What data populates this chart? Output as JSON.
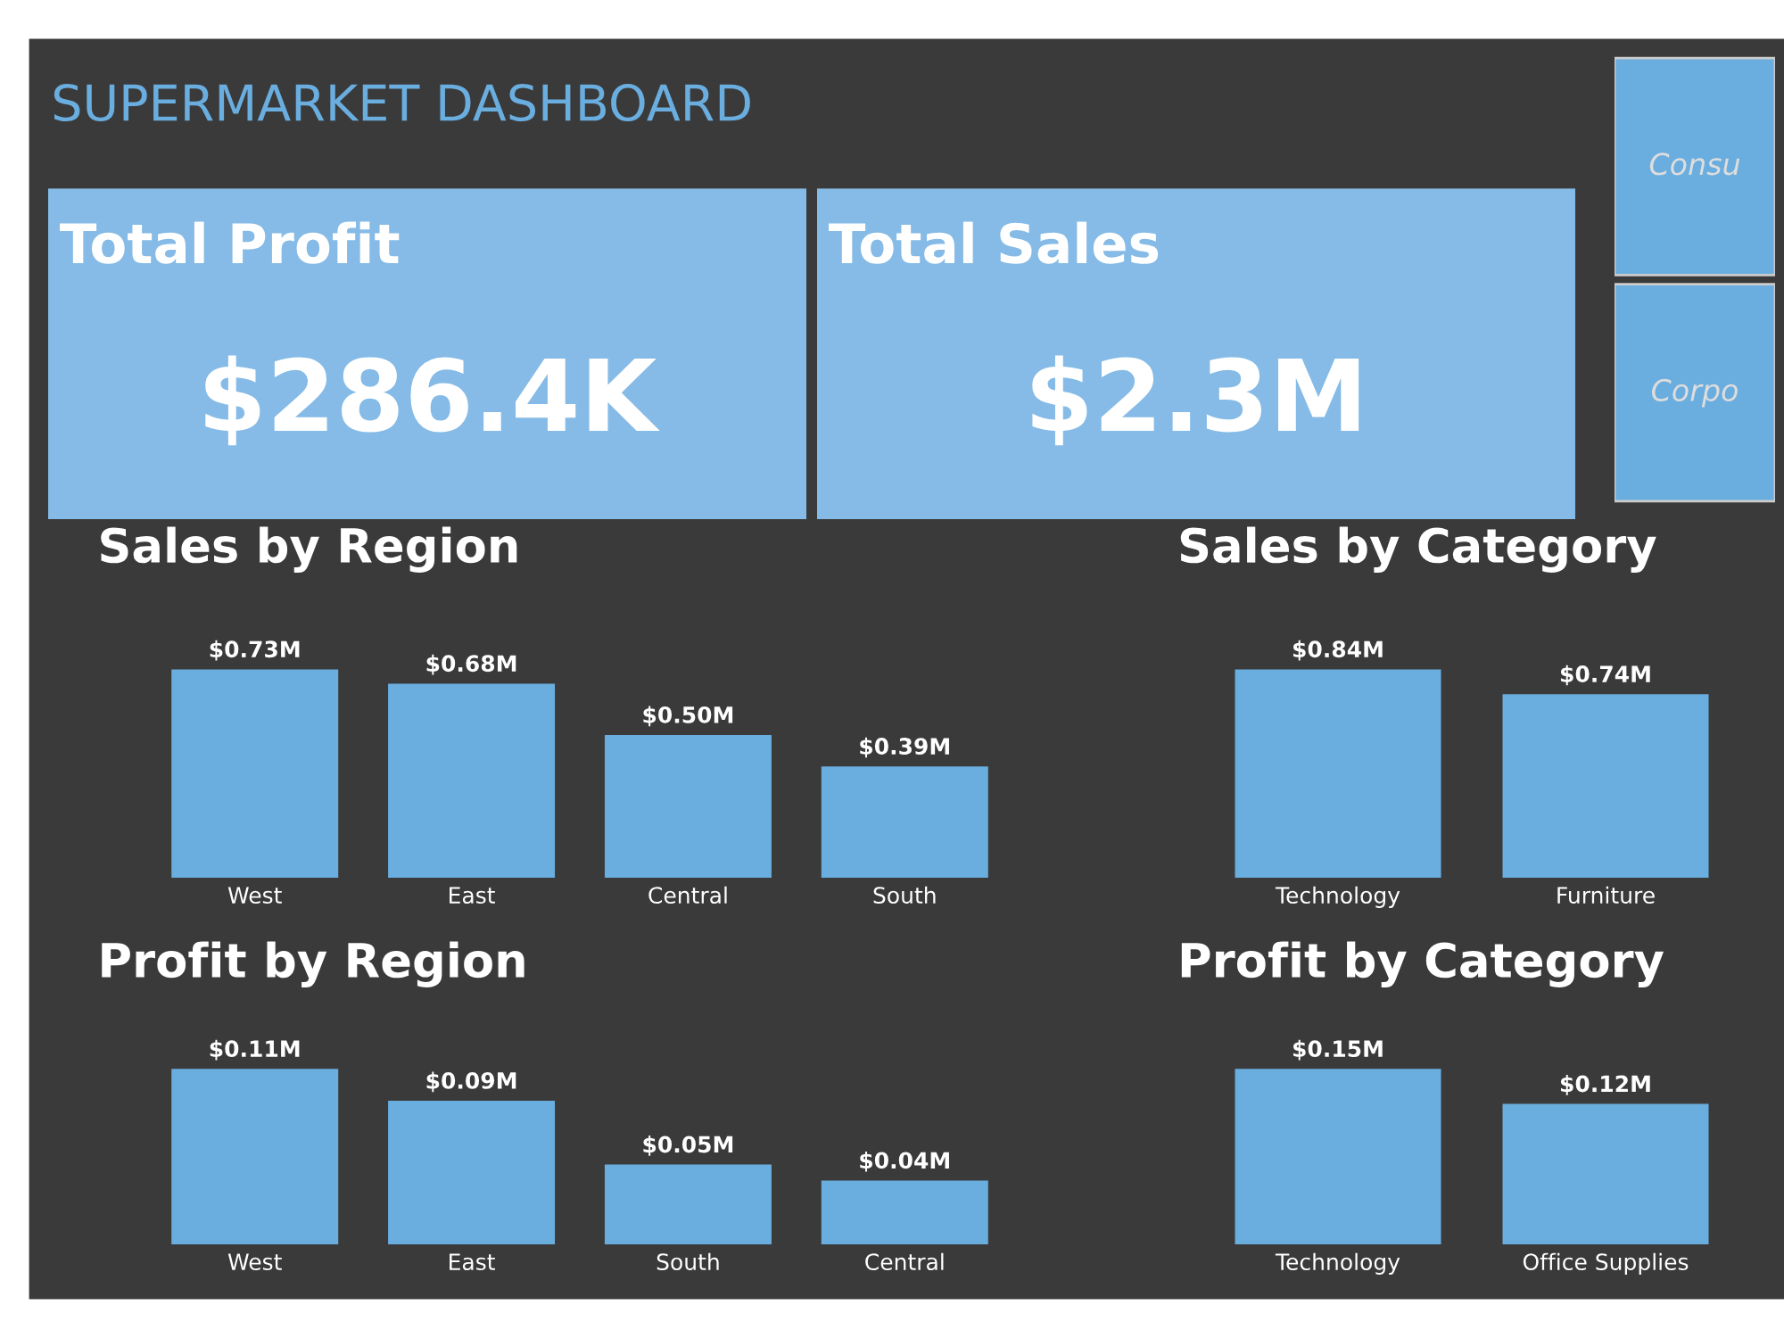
{
  "chart_data": [
    {
      "type": "other",
      "title": "SUPERMARKET DASHBOARD"
    },
    {
      "type": "other",
      "title": "Total Profit",
      "annotations": [
        "$286.4K"
      ]
    },
    {
      "type": "other",
      "title": "Total Sales",
      "annotations": [
        "$2.3M"
      ]
    },
    {
      "type": "other",
      "annotations": [
        "Consu",
        "Corpo"
      ]
    },
    {
      "type": "bar",
      "title": "Sales by Region",
      "categories": [
        "West",
        "East",
        "Central",
        "South"
      ],
      "values": [
        0.73,
        0.68,
        0.5,
        0.39
      ],
      "value_labels": [
        "$0.73M",
        "$0.68M",
        "$0.50M",
        "$0.39M"
      ],
      "color": "#6aaddf"
    },
    {
      "type": "bar",
      "title": "Sales by Category",
      "categories": [
        "Technology",
        "Furniture"
      ],
      "values": [
        0.84,
        0.74
      ],
      "value_labels": [
        "$0.84M",
        "$0.74M"
      ],
      "color": "#6aaddf"
    },
    {
      "type": "bar",
      "title": "Profit by Region",
      "categories": [
        "West",
        "East",
        "South",
        "Central"
      ],
      "values": [
        0.11,
        0.09,
        0.05,
        0.04
      ],
      "value_labels": [
        "$0.11M",
        "$0.09M",
        "$0.05M",
        "$0.04M"
      ],
      "color": "#6aaddf"
    },
    {
      "type": "bar",
      "title": "Profit by Category",
      "categories": [
        "Technology",
        "Office Supplies"
      ],
      "values": [
        0.15,
        0.12
      ],
      "value_labels": [
        "$0.15M",
        "$0.12M"
      ],
      "color": "#6aaddf"
    }
  ]
}
